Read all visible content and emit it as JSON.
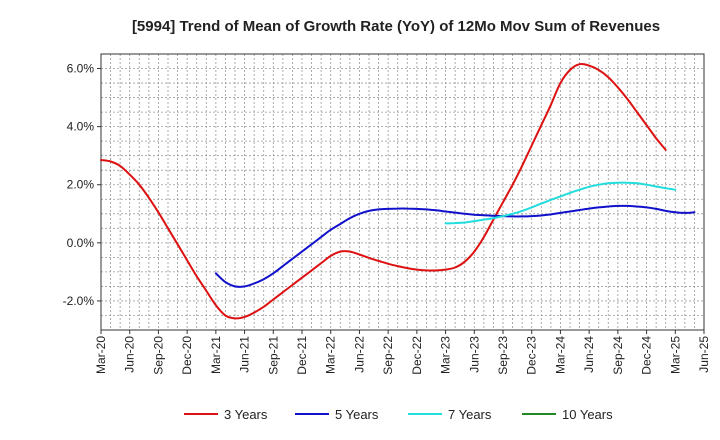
{
  "chart_data": {
    "type": "line",
    "title": "[5994]  Trend of Mean of Growth Rate (YoY) of 12Mo Mov Sum of Revenues",
    "xlabel": "",
    "ylabel": "",
    "ylim": [
      -3.0,
      6.5
    ],
    "yticks": [
      -2.0,
      0.0,
      2.0,
      4.0,
      6.0
    ],
    "ytick_labels": [
      "-2.0%",
      "0.0%",
      "2.0%",
      "4.0%",
      "6.0%"
    ],
    "x_tick_labels": [
      "Mar-20",
      "Jun-20",
      "Sep-20",
      "Dec-20",
      "Mar-21",
      "Jun-21",
      "Sep-21",
      "Dec-21",
      "Mar-22",
      "Jun-22",
      "Sep-22",
      "Dec-22",
      "Mar-23",
      "Jun-23",
      "Sep-23",
      "Dec-23",
      "Mar-24",
      "Jun-24",
      "Sep-24",
      "Dec-24",
      "Mar-25",
      "Jun-25"
    ],
    "x_start": "Mar-20",
    "x_months": 63,
    "grid": true,
    "legend_position": "bottom",
    "series": [
      {
        "name": "3 Years",
        "color": "#dd1111",
        "start_month": 0,
        "values": [
          2.85,
          2.8,
          2.65,
          2.35,
          2.0,
          1.55,
          1.05,
          0.5,
          -0.05,
          -0.6,
          -1.15,
          -1.65,
          -2.15,
          -2.5,
          -2.6,
          -2.55,
          -2.4,
          -2.2,
          -1.95,
          -1.7,
          -1.45,
          -1.2,
          -0.95,
          -0.7,
          -0.45,
          -0.3,
          -0.3,
          -0.4,
          -0.52,
          -0.62,
          -0.72,
          -0.8,
          -0.87,
          -0.92,
          -0.95,
          -0.95,
          -0.92,
          -0.85,
          -0.65,
          -0.3,
          0.2,
          0.8,
          1.4,
          2.0,
          2.65,
          3.35,
          4.05,
          4.75,
          5.5,
          5.95,
          6.15,
          6.1,
          5.95,
          5.7,
          5.35,
          4.95,
          4.5,
          4.05,
          3.6,
          3.2
        ]
      },
      {
        "name": "5 Years",
        "color": "#1111cc",
        "start_month": 12,
        "values": [
          -1.05,
          -1.35,
          -1.5,
          -1.5,
          -1.4,
          -1.25,
          -1.05,
          -0.8,
          -0.55,
          -0.3,
          -0.05,
          0.2,
          0.45,
          0.65,
          0.85,
          1.0,
          1.1,
          1.15,
          1.17,
          1.18,
          1.18,
          1.17,
          1.15,
          1.12,
          1.08,
          1.04,
          1.0,
          0.97,
          0.95,
          0.93,
          0.92,
          0.91,
          0.91,
          0.92,
          0.94,
          0.98,
          1.03,
          1.08,
          1.13,
          1.18,
          1.22,
          1.25,
          1.27,
          1.27,
          1.25,
          1.22,
          1.17,
          1.1,
          1.05,
          1.03,
          1.05
        ]
      },
      {
        "name": "7 Years",
        "color": "#22dddd",
        "start_month": 36,
        "values": [
          0.67,
          0.68,
          0.7,
          0.75,
          0.8,
          0.85,
          0.92,
          1.0,
          1.1,
          1.22,
          1.35,
          1.48,
          1.6,
          1.72,
          1.83,
          1.93,
          2.0,
          2.05,
          2.07,
          2.07,
          2.05,
          2.0,
          1.94,
          1.88,
          1.83
        ]
      },
      {
        "name": "10 Years",
        "color": "#228822",
        "start_month": 0,
        "values": []
      }
    ]
  }
}
